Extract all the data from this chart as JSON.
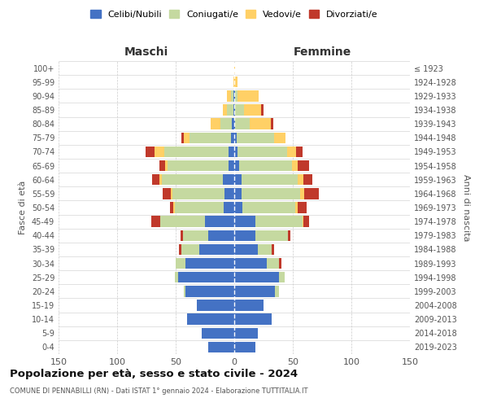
{
  "age_groups": [
    "0-4",
    "5-9",
    "10-14",
    "15-19",
    "20-24",
    "25-29",
    "30-34",
    "35-39",
    "40-44",
    "45-49",
    "50-54",
    "55-59",
    "60-64",
    "65-69",
    "70-74",
    "75-79",
    "80-84",
    "85-89",
    "90-94",
    "95-99",
    "100+"
  ],
  "birth_years": [
    "2019-2023",
    "2014-2018",
    "2009-2013",
    "2004-2008",
    "1999-2003",
    "1994-1998",
    "1989-1993",
    "1984-1988",
    "1979-1983",
    "1974-1978",
    "1969-1973",
    "1964-1968",
    "1959-1963",
    "1954-1958",
    "1949-1953",
    "1944-1948",
    "1939-1943",
    "1934-1938",
    "1929-1933",
    "1924-1928",
    "≤ 1923"
  ],
  "maschi": {
    "celibi": [
      22,
      28,
      40,
      32,
      42,
      48,
      42,
      30,
      22,
      25,
      9,
      8,
      10,
      5,
      5,
      3,
      2,
      1,
      1,
      0,
      0
    ],
    "coniugati": [
      0,
      0,
      0,
      0,
      1,
      3,
      8,
      15,
      22,
      38,
      42,
      45,
      52,
      52,
      55,
      35,
      10,
      5,
      2,
      0,
      0
    ],
    "vedovi": [
      0,
      0,
      0,
      0,
      0,
      0,
      0,
      0,
      0,
      0,
      1,
      1,
      2,
      2,
      8,
      5,
      8,
      4,
      3,
      1,
      0
    ],
    "divorziati": [
      0,
      0,
      0,
      0,
      0,
      0,
      0,
      2,
      2,
      8,
      3,
      7,
      6,
      5,
      8,
      2,
      0,
      0,
      0,
      0,
      0
    ]
  },
  "femmine": {
    "celibi": [
      18,
      20,
      32,
      25,
      35,
      38,
      28,
      20,
      18,
      18,
      7,
      6,
      6,
      4,
      3,
      2,
      1,
      1,
      1,
      0,
      0
    ],
    "coniugati": [
      0,
      0,
      0,
      0,
      3,
      5,
      10,
      12,
      28,
      40,
      45,
      50,
      48,
      45,
      42,
      32,
      12,
      7,
      2,
      0,
      0
    ],
    "vedovi": [
      0,
      0,
      0,
      0,
      0,
      0,
      0,
      0,
      0,
      1,
      2,
      4,
      5,
      5,
      8,
      10,
      18,
      15,
      18,
      3,
      1
    ],
    "divorziati": [
      0,
      0,
      0,
      0,
      0,
      0,
      2,
      2,
      2,
      5,
      8,
      12,
      8,
      10,
      5,
      0,
      2,
      2,
      0,
      0,
      0
    ]
  },
  "colors": {
    "celibi": "#4472C4",
    "coniugati": "#c5d9a0",
    "vedovi": "#FFD066",
    "divorziati": "#C0392B"
  },
  "title": "Popolazione per età, sesso e stato civile - 2024",
  "subtitle": "COMUNE DI PENNABILLI (RN) - Dati ISTAT 1° gennaio 2024 - Elaborazione TUTTITALIA.IT",
  "xlabel_left": "Maschi",
  "xlabel_right": "Femmine",
  "ylabel_left": "Fasce di età",
  "ylabel_right": "Anni di nascita",
  "xlim": 150,
  "legend_labels": [
    "Celibi/Nubili",
    "Coniugati/e",
    "Vedovi/e",
    "Divorziati/e"
  ],
  "bg_color": "#ffffff",
  "grid_color": "#cccccc"
}
